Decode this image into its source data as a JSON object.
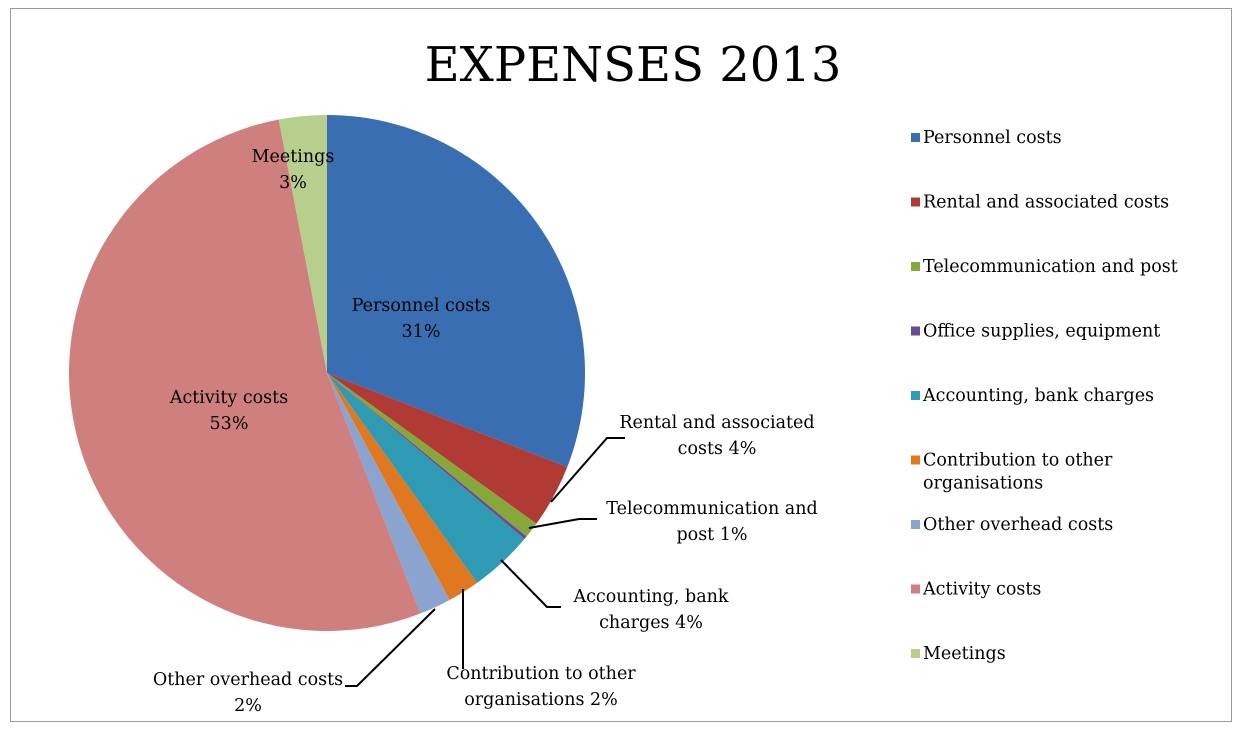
{
  "chart_data": {
    "type": "pie",
    "title": "EXPENSES 2013",
    "legend_position": "right",
    "start_angle_deg": 0,
    "direction": "clockwise",
    "slices": [
      {
        "label": "Personnel costs",
        "value": 31,
        "value_label": "31%",
        "color": "#3a6eb2"
      },
      {
        "label": "Rental and associated costs",
        "value": 4,
        "value_label": "4%",
        "color": "#b13a34"
      },
      {
        "label": "Telecommunication and post",
        "value": 1,
        "value_label": "1%",
        "color": "#86a83b"
      },
      {
        "label": "Office supplies, equipment",
        "value": 0.2,
        "value_label": "",
        "color": "#6e4a93"
      },
      {
        "label": "Accounting, bank charges",
        "value": 4,
        "value_label": "4%",
        "color": "#2f9ab4"
      },
      {
        "label": "Contribution to other organisations",
        "value": 2,
        "value_label": "2%",
        "color": "#e0781f"
      },
      {
        "label": "Other overhead costs",
        "value": 2,
        "value_label": "2%",
        "color": "#8aa3cf"
      },
      {
        "label": "Activity costs",
        "value": 53,
        "value_label": "53%",
        "color": "#cf7f7d"
      },
      {
        "label": "Meetings",
        "value": 3,
        "value_label": "3%",
        "color": "#b6cf8c"
      }
    ],
    "legend": [
      {
        "lines": [
          "Personnel costs"
        ],
        "color": "#3a6eb2"
      },
      {
        "lines": [
          "Rental and associated costs"
        ],
        "color": "#b13a34"
      },
      {
        "lines": [
          "Telecommunication and post"
        ],
        "color": "#86a83b"
      },
      {
        "lines": [
          "Office supplies, equipment"
        ],
        "color": "#6e4a93"
      },
      {
        "lines": [
          "Accounting, bank charges"
        ],
        "color": "#2f9ab4"
      },
      {
        "lines": [
          "Contribution to other",
          "organisations"
        ],
        "color": "#e0781f"
      },
      {
        "lines": [
          "Other overhead costs"
        ],
        "color": "#8aa3cf"
      },
      {
        "lines": [
          "Activity costs"
        ],
        "color": "#cf7f7d"
      },
      {
        "lines": [
          "Meetings"
        ],
        "color": "#b6cf8c"
      }
    ],
    "data_labels": [
      {
        "lines": [
          "Personnel costs",
          "31%"
        ],
        "placement": "inside"
      },
      {
        "lines": [
          "Rental and associated",
          "costs   4%"
        ],
        "placement": "outside"
      },
      {
        "lines": [
          "Telecommunication and",
          "post   1%"
        ],
        "placement": "outside"
      },
      {
        "lines": [],
        "placement": "none"
      },
      {
        "lines": [
          "Accounting, bank",
          "charges   4%"
        ],
        "placement": "outside"
      },
      {
        "lines": [
          "Contribution to other",
          "organisations   2%"
        ],
        "placement": "outside"
      },
      {
        "lines": [
          "Other overhead costs",
          "2%"
        ],
        "placement": "outside"
      },
      {
        "lines": [
          "Activity costs",
          "53%"
        ],
        "placement": "inside"
      },
      {
        "lines": [
          "Meetings",
          "3%"
        ],
        "placement": "inside"
      }
    ]
  }
}
